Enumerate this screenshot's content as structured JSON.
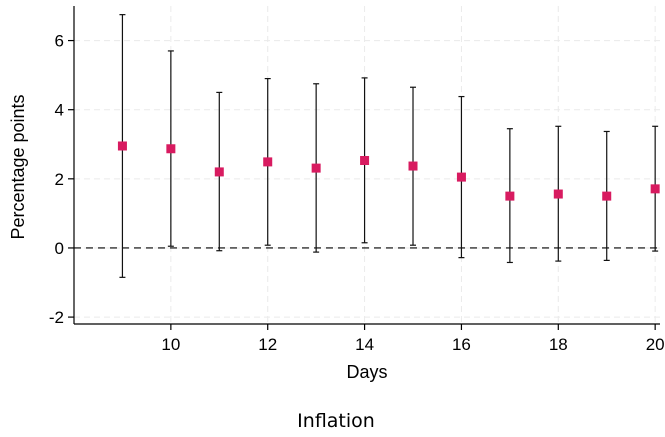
{
  "chart_data": {
    "type": "scatter",
    "subtype": "point-estimates-with-confidence-intervals",
    "xlabel": "Days",
    "ylabel": "Percentage points",
    "caption": "Inflation",
    "xlim": [
      8,
      20.1
    ],
    "ylim": [
      -2.2,
      7.0
    ],
    "x_ticks": [
      10,
      12,
      14,
      16,
      18,
      20
    ],
    "y_ticks": [
      -2,
      0,
      2,
      4,
      6
    ],
    "reference_line": {
      "y": 0,
      "style": "dashed"
    },
    "grid": true,
    "marker_color": "#d81b60",
    "series": [
      {
        "points": [
          {
            "x": 9,
            "y": 2.95,
            "lo": -0.85,
            "hi": 6.75
          },
          {
            "x": 10,
            "y": 2.87,
            "lo": 0.05,
            "hi": 5.7
          },
          {
            "x": 11,
            "y": 2.2,
            "lo": -0.08,
            "hi": 4.5
          },
          {
            "x": 12,
            "y": 2.49,
            "lo": 0.08,
            "hi": 4.9
          },
          {
            "x": 13,
            "y": 2.31,
            "lo": -0.12,
            "hi": 4.75
          },
          {
            "x": 14,
            "y": 2.53,
            "lo": 0.15,
            "hi": 4.92
          },
          {
            "x": 15,
            "y": 2.37,
            "lo": 0.08,
            "hi": 4.65
          },
          {
            "x": 16,
            "y": 2.05,
            "lo": -0.28,
            "hi": 4.38
          },
          {
            "x": 17,
            "y": 1.5,
            "lo": -0.42,
            "hi": 3.45
          },
          {
            "x": 18,
            "y": 1.56,
            "lo": -0.38,
            "hi": 3.52
          },
          {
            "x": 19,
            "y": 1.5,
            "lo": -0.36,
            "hi": 3.37
          },
          {
            "x": 20,
            "y": 1.71,
            "lo": -0.09,
            "hi": 3.52
          }
        ]
      }
    ]
  }
}
